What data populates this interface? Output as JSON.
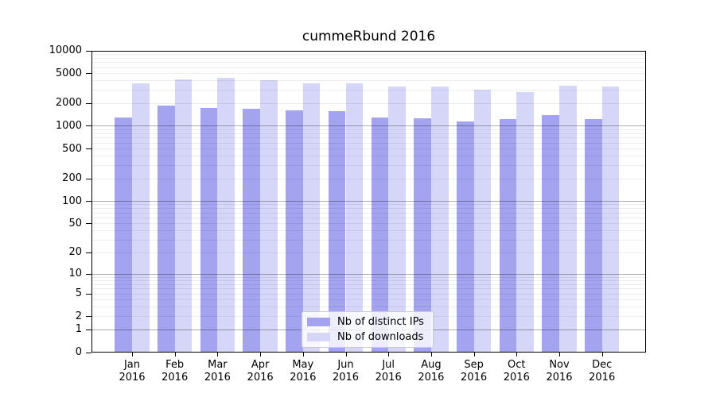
{
  "title": "cummeRbund 2016",
  "colors": {
    "distinct_ips_bar": "#a3a3f0",
    "downloads_bar": "#d6d6f9",
    "grid_major": "rgba(0,0,0,0.32)",
    "grid_minor": "rgba(0,0,0,0.07)",
    "axis": "#000000",
    "legend_border": "#cccccc"
  },
  "legend": {
    "items": [
      {
        "label": "Nb of distinct IPs"
      },
      {
        "label": "Nb of downloads"
      }
    ]
  },
  "chart_data": {
    "type": "bar",
    "title": "cummeRbund 2016",
    "categories": [
      "Jan 2016",
      "Feb 2016",
      "Mar 2016",
      "Apr 2016",
      "May 2016",
      "Jun 2016",
      "Jul 2016",
      "Aug 2016",
      "Sep 2016",
      "Oct 2016",
      "Nov 2016",
      "Dec 2016"
    ],
    "series": [
      {
        "name": "Nb of distinct IPs",
        "values": [
          1300,
          1850,
          1720,
          1680,
          1585,
          1560,
          1300,
          1260,
          1140,
          1225,
          1380,
          1230
        ]
      },
      {
        "name": "Nb of downloads",
        "values": [
          3700,
          4100,
          4310,
          4010,
          3640,
          3640,
          3330,
          3350,
          3000,
          2790,
          3420,
          3350
        ]
      }
    ],
    "xlabel": "",
    "ylabel": "",
    "y_scale": "log(value+1)",
    "ylim": [
      0,
      10000
    ],
    "y_ticks": [
      0,
      1,
      2,
      5,
      10,
      20,
      50,
      100,
      200,
      500,
      1000,
      2000,
      5000,
      10000
    ],
    "y_tick_labels": [
      "0",
      "1",
      "2",
      "5",
      "10",
      "20",
      "50",
      "100",
      "200",
      "500",
      "1000",
      "2000",
      "5000",
      "10000"
    ],
    "grid": "horizontal log minor + major decade lines",
    "legend_position": "lower center"
  }
}
